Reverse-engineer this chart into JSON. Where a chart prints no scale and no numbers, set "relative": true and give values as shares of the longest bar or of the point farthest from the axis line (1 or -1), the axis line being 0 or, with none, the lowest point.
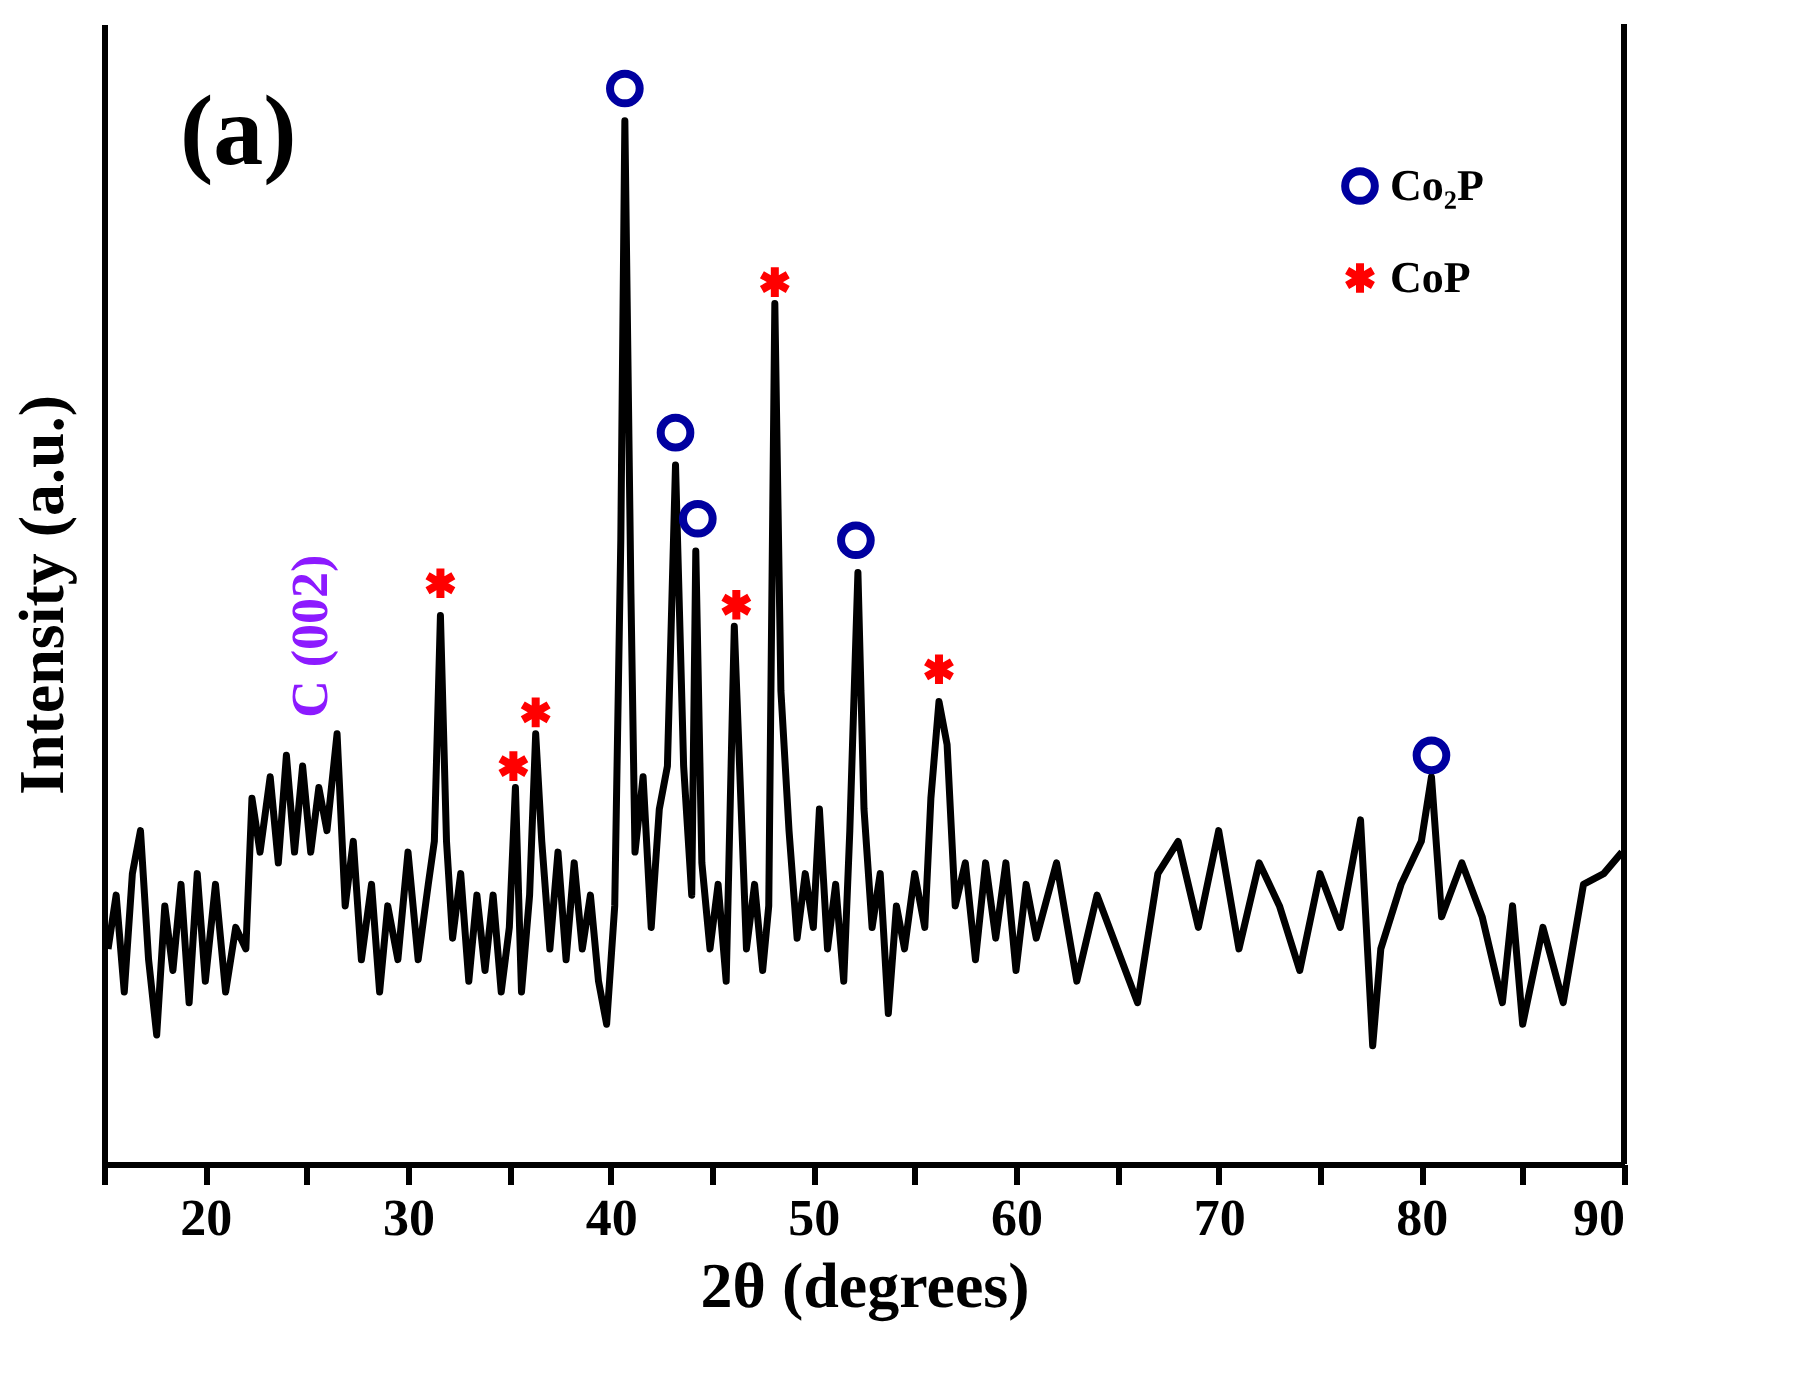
{
  "chart_data": {
    "type": "line",
    "relative": true,
    "xlabel": "2θ (degrees)",
    "ylabel": "Intensity (a.u.)",
    "xlim": [
      15,
      90
    ],
    "xticks": [
      {
        "value": 15,
        "label": null
      },
      20,
      {
        "value": 25,
        "label": null
      },
      30,
      {
        "value": 35,
        "label": null
      },
      40,
      {
        "value": 45,
        "label": null
      },
      50,
      {
        "value": 55,
        "label": null
      },
      60,
      {
        "value": 65,
        "label": null
      },
      70,
      {
        "value": 75,
        "label": null
      },
      80,
      {
        "value": 85,
        "label": null
      },
      90
    ],
    "grid": false,
    "legend": "top right",
    "line_style": "solid",
    "marker": "none",
    "annotations": [
      "(a)",
      {
        "text": "C (002)",
        "x": 26.5,
        "y": 0.4
      }
    ],
    "series": [
      {
        "color": "#000000",
        "x": [
          15.2,
          15.6,
          16.0,
          16.4,
          16.8,
          17.2,
          17.6,
          18.0,
          18.4,
          18.8,
          19.2,
          19.6,
          20.0,
          20.5,
          21.0,
          21.5,
          22.0,
          22.3,
          22.7,
          23.2,
          23.6,
          24.0,
          24.4,
          24.8,
          25.2,
          25.6,
          26.0,
          26.5,
          26.9,
          27.3,
          27.7,
          28.2,
          28.6,
          29.0,
          29.5,
          30.0,
          30.5,
          31.0,
          31.3,
          31.6,
          31.9,
          32.2,
          32.6,
          33.0,
          33.4,
          33.8,
          34.2,
          34.6,
          35.0,
          35.3,
          35.6,
          36.0,
          36.3,
          36.6,
          37.0,
          37.4,
          37.8,
          38.2,
          38.6,
          39.0,
          39.4,
          39.8,
          40.2,
          40.5,
          40.7,
          41.0,
          41.2,
          41.6,
          42.0,
          42.4,
          42.8,
          43.2,
          43.6,
          44.0,
          44.2,
          44.5,
          44.9,
          45.3,
          45.7,
          46.1,
          46.4,
          46.7,
          47.1,
          47.5,
          47.8,
          48.1,
          48.4,
          48.8,
          49.2,
          49.6,
          50.0,
          50.3,
          50.7,
          51.1,
          51.5,
          51.8,
          52.2,
          52.5,
          52.9,
          53.3,
          53.7,
          54.1,
          54.5,
          55.0,
          55.5,
          55.8,
          56.2,
          56.6,
          57.0,
          57.5,
          58.0,
          58.5,
          59.0,
          59.5,
          60.0,
          60.5,
          61.0,
          62.0,
          63.0,
          64.0,
          65.0,
          66.0,
          67.0,
          68.0,
          69.0,
          70.0,
          71.0,
          72.0,
          73.0,
          74.0,
          75.0,
          76.0,
          77.0,
          77.6,
          78.0,
          79.0,
          80.0,
          80.5,
          81.0,
          82.0,
          83.0,
          84.0,
          84.5,
          85.0,
          86.0,
          87.0,
          88.0,
          89.0,
          89.9
        ],
        "values": [
          0.2,
          0.25,
          0.16,
          0.27,
          0.31,
          0.19,
          0.12,
          0.24,
          0.18,
          0.26,
          0.15,
          0.27,
          0.17,
          0.26,
          0.16,
          0.22,
          0.2,
          0.34,
          0.29,
          0.36,
          0.28,
          0.38,
          0.29,
          0.37,
          0.29,
          0.35,
          0.31,
          0.4,
          0.24,
          0.3,
          0.19,
          0.26,
          0.16,
          0.24,
          0.19,
          0.29,
          0.19,
          0.26,
          0.3,
          0.51,
          0.3,
          0.21,
          0.27,
          0.17,
          0.25,
          0.18,
          0.25,
          0.16,
          0.22,
          0.35,
          0.16,
          0.25,
          0.4,
          0.3,
          0.2,
          0.29,
          0.19,
          0.28,
          0.2,
          0.25,
          0.17,
          0.13,
          0.24,
          0.58,
          0.97,
          0.53,
          0.29,
          0.36,
          0.22,
          0.33,
          0.37,
          0.65,
          0.37,
          0.25,
          0.57,
          0.28,
          0.2,
          0.26,
          0.17,
          0.5,
          0.35,
          0.2,
          0.26,
          0.18,
          0.24,
          0.8,
          0.44,
          0.31,
          0.21,
          0.27,
          0.22,
          0.33,
          0.2,
          0.26,
          0.17,
          0.31,
          0.55,
          0.33,
          0.22,
          0.27,
          0.14,
          0.24,
          0.2,
          0.27,
          0.22,
          0.34,
          0.43,
          0.39,
          0.24,
          0.28,
          0.19,
          0.28,
          0.21,
          0.28,
          0.18,
          0.26,
          0.21,
          0.28,
          0.17,
          0.25,
          0.2,
          0.15,
          0.27,
          0.3,
          0.22,
          0.31,
          0.2,
          0.28,
          0.24,
          0.18,
          0.27,
          0.22,
          0.32,
          0.11,
          0.2,
          0.26,
          0.3,
          0.36,
          0.23,
          0.28,
          0.23,
          0.15,
          0.24,
          0.13,
          0.22,
          0.15,
          0.26,
          0.27,
          0.29
        ]
      },
      {
        "name": "Co₂P",
        "type": "scatter",
        "marker": "circle",
        "color": "#0000a0",
        "x": [
          40.7,
          43.2,
          44.3,
          52.1,
          80.5
        ],
        "values": [
          1.0,
          0.68,
          0.6,
          0.58,
          0.38
        ]
      },
      {
        "name": "CoP",
        "type": "scatter",
        "marker": "cross",
        "color": "#ff0000",
        "x": [
          31.6,
          35.2,
          36.3,
          46.2,
          48.1,
          56.2
        ],
        "values": [
          0.54,
          0.37,
          0.42,
          0.52,
          0.82,
          0.46
        ]
      }
    ]
  }
}
